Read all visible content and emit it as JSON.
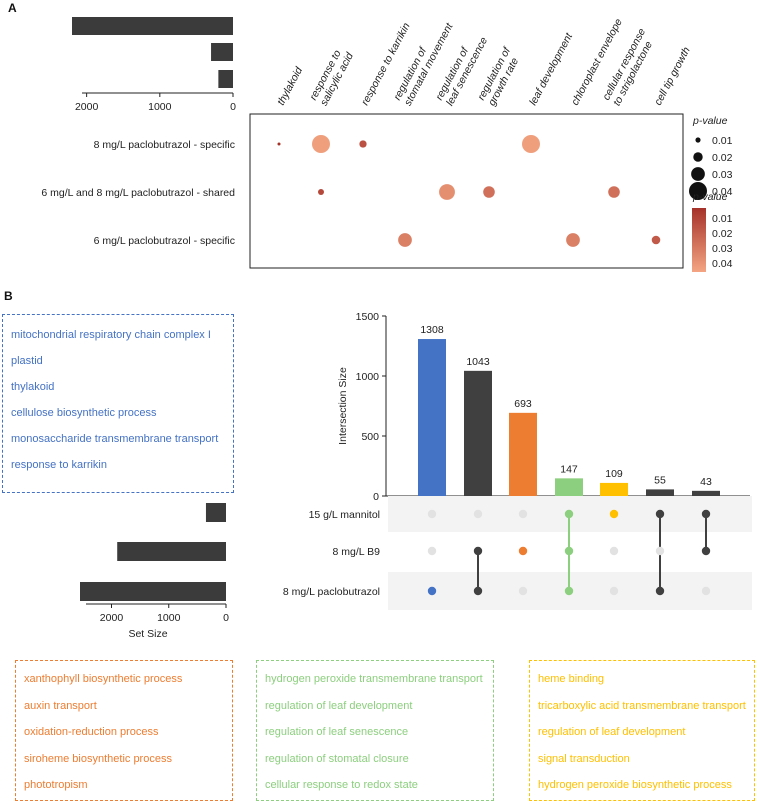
{
  "panel_labels": [
    "A",
    "B"
  ],
  "chart_data": [
    {
      "type": "bar",
      "orientation": "horizontal",
      "panel": "A",
      "role": "set-size",
      "values": [
        2200,
        300,
        200
      ],
      "xlim": [
        2500,
        0
      ],
      "ticks": [
        "2000",
        "1000",
        "0"
      ]
    },
    {
      "type": "scatter",
      "panel": "A",
      "role": "dot-plot",
      "x_categories": [
        "thylakoid",
        "response to salicylic acid",
        "response to karrikin",
        "regulation of stomatal movement",
        "regulation of leaf senescence",
        "regulation of growth rate",
        "leaf development",
        "chloroplast envelope",
        "cellular response to strigolactone",
        "cell tip growth"
      ],
      "x_category_lines": [
        [
          "thylakoid"
        ],
        [
          "response to",
          "salicylic acid"
        ],
        [
          "response to karrikin"
        ],
        [
          "regulation of",
          "stomatal movement"
        ],
        [
          "regulation of",
          "leaf senescence"
        ],
        [
          "regulation of",
          "growth rate"
        ],
        [
          "leaf development"
        ],
        [
          "chloroplast envelope"
        ],
        [
          "cellular response",
          "to strigolactone"
        ],
        [
          "cell tip growth"
        ]
      ],
      "y_categories": [
        "8 mg/L paclobutrazol - specific",
        "6 mg/L and 8 mg/L paclobutrazol - shared",
        "6 mg/L paclobutrazol - specific"
      ],
      "points": [
        {
          "x": "thylakoid",
          "y": "8 mg/L paclobutrazol - specific",
          "p": 0.005
        },
        {
          "x": "response to salicylic acid",
          "y": "8 mg/L paclobutrazol - specific",
          "p": 0.04
        },
        {
          "x": "response to karrikin",
          "y": "8 mg/L paclobutrazol - specific",
          "p": 0.015
        },
        {
          "x": "leaf development",
          "y": "8 mg/L paclobutrazol - specific",
          "p": 0.04
        },
        {
          "x": "response to salicylic acid",
          "y": "6 mg/L and 8 mg/L paclobutrazol - shared",
          "p": 0.012
        },
        {
          "x": "regulation of leaf senescence",
          "y": "6 mg/L and 8 mg/L paclobutrazol - shared",
          "p": 0.035
        },
        {
          "x": "regulation of growth rate",
          "y": "6 mg/L and 8 mg/L paclobutrazol - shared",
          "p": 0.025
        },
        {
          "x": "cellular response to strigolactone",
          "y": "6 mg/L and 8 mg/L paclobutrazol - shared",
          "p": 0.025
        },
        {
          "x": "regulation of stomatal movement",
          "y": "6 mg/L paclobutrazol - specific",
          "p": 0.03
        },
        {
          "x": "chloroplast envelope",
          "y": "6 mg/L paclobutrazol - specific",
          "p": 0.03
        },
        {
          "x": "cell tip growth",
          "y": "6 mg/L paclobutrazol - specific",
          "p": 0.018
        }
      ],
      "size_legend": {
        "title": "p-value",
        "values": [
          "0.01",
          "0.02",
          "0.03",
          "0.04"
        ]
      },
      "color_legend": {
        "title": "p-value",
        "values": [
          "0.01",
          "0.02",
          "0.03",
          "0.04"
        ],
        "colors": [
          "#a5322a",
          "#f4a582"
        ]
      }
    },
    {
      "type": "bar",
      "panel": "B",
      "role": "intersection-size",
      "ylabel": "Intersection Size",
      "ylim": [
        0,
        1500
      ],
      "yticks": [
        "0",
        "500",
        "1000",
        "1500"
      ],
      "values": [
        1308,
        1043,
        693,
        147,
        109,
        55,
        43
      ],
      "labels": [
        "1308",
        "1043",
        "693",
        "147",
        "109",
        "55",
        "43"
      ],
      "colors": [
        "#4472c4",
        "#404040",
        "#ed7d31",
        "#8ccf7e",
        "#ffc000",
        "#404040",
        "#404040"
      ]
    },
    {
      "type": "bar",
      "orientation": "horizontal",
      "panel": "B",
      "role": "set-size",
      "xlabel": "Set Size",
      "sets": [
        "15 g/L mannitol",
        "8 mg/L B9",
        "8 mg/L paclobutrazol"
      ],
      "values": [
        350,
        1900,
        2550
      ],
      "xlim": [
        2800,
        0
      ],
      "ticks": [
        "2000",
        "1000",
        "0"
      ]
    },
    {
      "type": "table",
      "panel": "B",
      "role": "intersection-matrix",
      "sets": [
        "15 g/L mannitol",
        "8 mg/L B9",
        "8 mg/L paclobutrazol"
      ],
      "columns": [
        {
          "members": [
            2
          ],
          "color": "#4472c4"
        },
        {
          "members": [
            1,
            2
          ],
          "color": "#404040"
        },
        {
          "members": [
            1
          ],
          "color": "#ed7d31"
        },
        {
          "members": [
            0,
            1,
            2
          ],
          "color": "#8ccf7e"
        },
        {
          "members": [
            0
          ],
          "color": "#ffc000"
        },
        {
          "members": [
            0,
            2
          ],
          "color": "#404040"
        },
        {
          "members": [
            0,
            1
          ],
          "color": "#404040"
        }
      ]
    }
  ],
  "term_boxes": [
    {
      "color": "#4472c4",
      "terms": [
        "mitochondrial respiratory chain complex I",
        "plastid",
        "thylakoid",
        "cellulose biosynthetic process",
        "monosaccharide transmembrane transport",
        "response to karrikin"
      ]
    },
    {
      "color": "#ed7d31",
      "terms": [
        "xanthophyll biosynthetic process",
        "auxin transport",
        "oxidation-reduction process",
        "siroheme biosynthetic process",
        "phototropism"
      ]
    },
    {
      "color": "#8ccf7e",
      "terms": [
        "hydrogen peroxide transmembrane transport",
        "regulation of leaf development",
        "regulation of leaf senescence",
        "regulation of stomatal closure",
        "cellular response to redox state"
      ]
    },
    {
      "color": "#ffc000",
      "terms": [
        "heme binding",
        "tricarboxylic acid transmembrane transport",
        "regulation of leaf development",
        "signal transduction",
        "hydrogen peroxide biosynthetic process"
      ]
    }
  ]
}
